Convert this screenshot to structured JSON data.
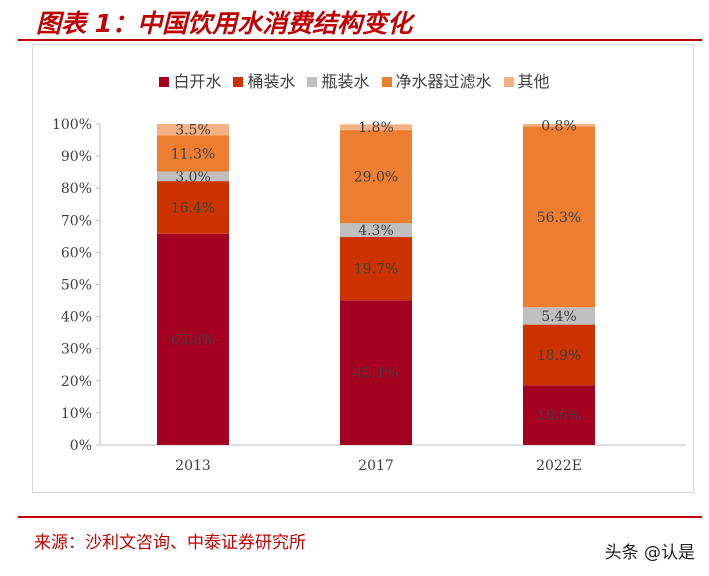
{
  "title": "图表 1：中国饮用水消费结构变化",
  "source": "来源：沙利文咨询、中泰证券研究所",
  "watermark": "头条 @认是",
  "chart_data": {
    "type": "bar",
    "stacked": true,
    "categories": [
      "2013",
      "2017",
      "2022E"
    ],
    "ylim": [
      0,
      100
    ],
    "yticks": [
      "0%",
      "10%",
      "20%",
      "30%",
      "40%",
      "50%",
      "60%",
      "70%",
      "80%",
      "90%",
      "100%"
    ],
    "legend_position": "top",
    "grid": false,
    "series": [
      {
        "name": "白开水",
        "color": "#A50021",
        "values": [
          65.8,
          45.1,
          18.6
        ],
        "labels": [
          "65.8%",
          "45.1%",
          "18.6%"
        ]
      },
      {
        "name": "桶装水",
        "color": "#CC3300",
        "values": [
          16.4,
          19.7,
          18.9
        ],
        "labels": [
          "16.4%",
          "19.7%",
          "18.9%"
        ]
      },
      {
        "name": "瓶装水",
        "color": "#BFBFBF",
        "values": [
          3.0,
          4.3,
          5.4
        ],
        "labels": [
          "3.0%",
          "4.3%",
          "5.4%"
        ]
      },
      {
        "name": "净水器过滤水",
        "color": "#ED7D31",
        "values": [
          11.3,
          29.0,
          56.3
        ],
        "labels": [
          "11.3%",
          "29.0%",
          "56.3%"
        ]
      },
      {
        "name": "其他",
        "color": "#F4B183",
        "values": [
          3.5,
          1.8,
          0.8
        ],
        "labels": [
          "3.5%",
          "1.8%",
          "0.8%"
        ]
      }
    ]
  }
}
